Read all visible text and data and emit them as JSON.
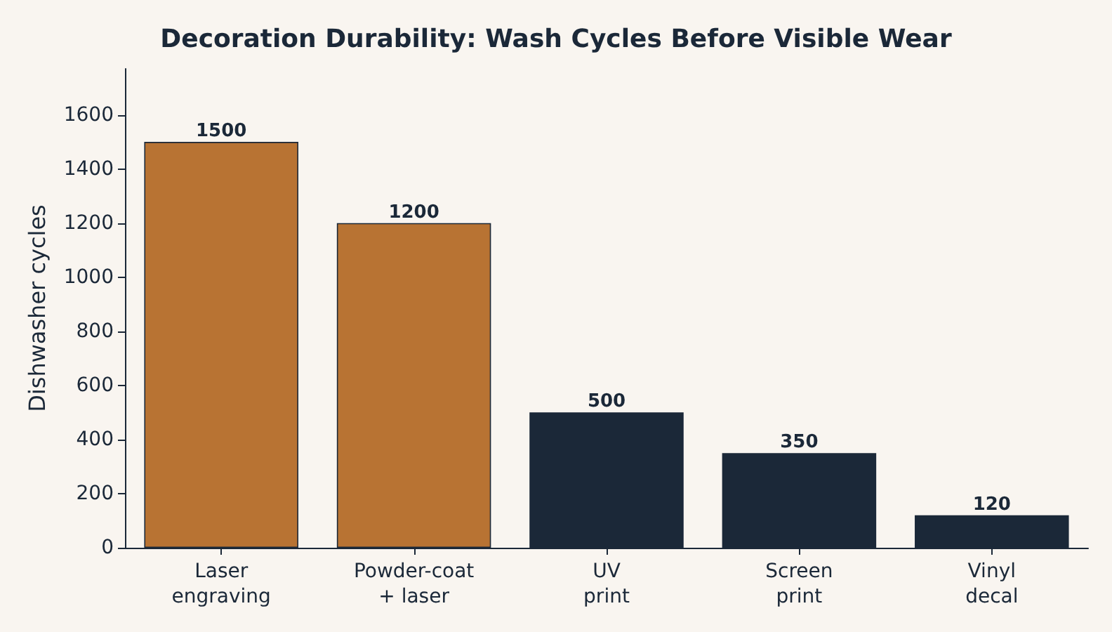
{
  "chart_data": {
    "type": "bar",
    "title": "Decoration Durability: Wash Cycles Before Visible Wear",
    "ylabel": "Dishwasher cycles",
    "categories": [
      "Laser\nengraving",
      "Powder-coat\n+ laser",
      "UV\nprint",
      "Screen\nprint",
      "Vinyl\ndecal"
    ],
    "values": [
      1500,
      1200,
      500,
      350,
      120
    ],
    "colors": [
      "#b87333",
      "#b87333",
      "#1b2838",
      "#1b2838",
      "#1b2838"
    ],
    "ylim": [
      0,
      1770
    ],
    "yticks": [
      0,
      200,
      400,
      600,
      800,
      1000,
      1200,
      1400,
      1600
    ],
    "grid": false,
    "data_labels": true
  }
}
